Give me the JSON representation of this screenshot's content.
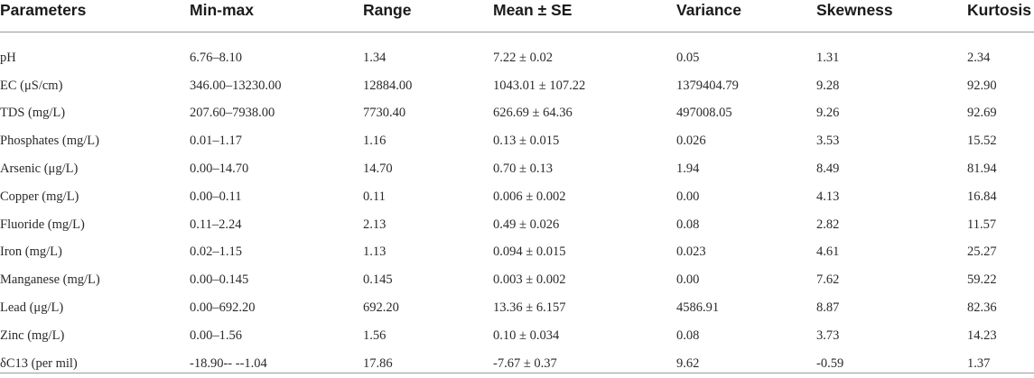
{
  "table": {
    "headers": [
      "Parameters",
      "Min-max",
      "Range",
      "Mean ± SE",
      "Variance",
      "Skewness",
      "Kurtosis"
    ],
    "rows": [
      [
        "pH",
        "6.76–8.10",
        "1.34",
        "7.22 ± 0.02",
        "0.05",
        "1.31",
        "2.34"
      ],
      [
        "EC (μS/cm)",
        "346.00–13230.00",
        "12884.00",
        "1043.01 ± 107.22",
        "1379404.79",
        "9.28",
        "92.90"
      ],
      [
        "TDS (mg/L)",
        "207.60–7938.00",
        "7730.40",
        "626.69 ± 64.36",
        "497008.05",
        "9.26",
        "92.69"
      ],
      [
        "Phosphates (mg/L)",
        "0.01–1.17",
        "1.16",
        "0.13 ± 0.015",
        "0.026",
        "3.53",
        "15.52"
      ],
      [
        "Arsenic (μg/L)",
        "0.00–14.70",
        "14.70",
        "0.70 ± 0.13",
        "1.94",
        "8.49",
        "81.94"
      ],
      [
        "Copper (mg/L)",
        "0.00–0.11",
        "0.11",
        "0.006 ± 0.002",
        "0.00",
        "4.13",
        "16.84"
      ],
      [
        "Fluoride (mg/L)",
        "0.11–2.24",
        "2.13",
        "0.49 ± 0.026",
        "0.08",
        "2.82",
        "11.57"
      ],
      [
        "Iron (mg/L)",
        "0.02–1.15",
        "1.13",
        "0.094 ± 0.015",
        "0.023",
        "4.61",
        "25.27"
      ],
      [
        "Manganese (mg/L)",
        "0.00–0.145",
        "0.145",
        "0.003 ± 0.002",
        "0.00",
        "7.62",
        "59.22"
      ],
      [
        "Lead (μg/L)",
        "0.00–692.20",
        "692.20",
        "13.36 ± 6.157",
        "4586.91",
        "8.87",
        "82.36"
      ],
      [
        "Zinc (mg/L)",
        "0.00–1.56",
        "1.56",
        "0.10 ± 0.034",
        "0.08",
        "3.73",
        "14.23"
      ],
      [
        "δC13 (per mil)",
        "-18.90-- --1.04",
        "17.86",
        "-7.67 ± 0.37",
        "9.62",
        "-0.59",
        "1.37"
      ]
    ]
  }
}
